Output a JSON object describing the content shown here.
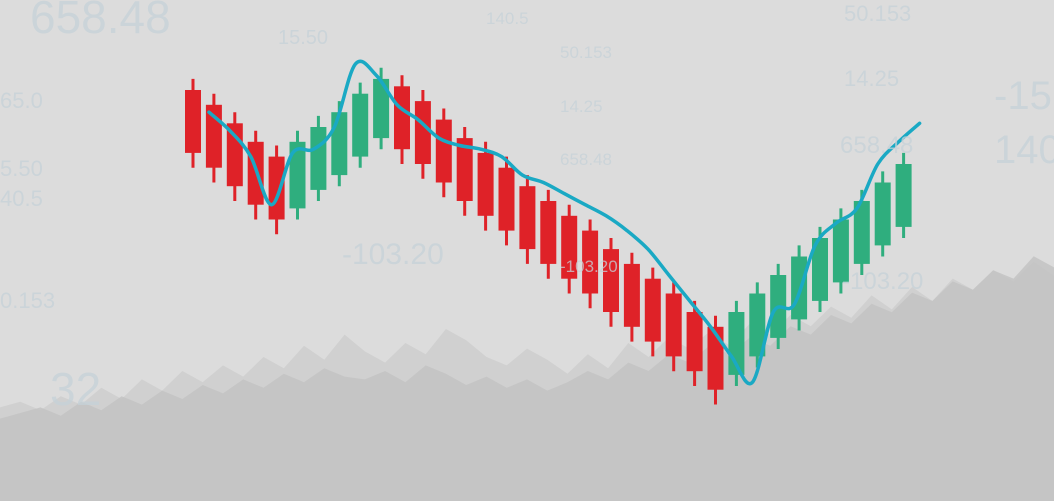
{
  "background_numbers": [
    "658.48",
    "15.50",
    "140.5",
    "50.153",
    "14.25",
    "658.48",
    "-103.20",
    "-103.20",
    "50.153",
    "14.25",
    "658.48",
    "-103.20",
    "-15",
    "140",
    "65.0",
    "5.50",
    "40.5",
    "0.153",
    "32"
  ],
  "colors": {
    "background": "#dcdcdc",
    "bearish_candle": "#df2228",
    "bullish_candle": "#2fae7e",
    "trend_line": "#1aa9c4",
    "area_fill": "#c9c9c9"
  },
  "chart_data": {
    "type": "candlestick",
    "title": "",
    "xlabel": "",
    "ylabel": "",
    "candles": [
      {
        "dir": "down",
        "open": 100,
        "close": 83,
        "high": 103,
        "low": 79
      },
      {
        "dir": "down",
        "open": 96,
        "close": 79,
        "high": 99,
        "low": 75
      },
      {
        "dir": "down",
        "open": 91,
        "close": 74,
        "high": 94,
        "low": 70
      },
      {
        "dir": "down",
        "open": 86,
        "close": 69,
        "high": 89,
        "low": 65
      },
      {
        "dir": "down",
        "open": 82,
        "close": 65,
        "high": 85,
        "low": 61
      },
      {
        "dir": "up",
        "open": 68,
        "close": 86,
        "high": 89,
        "low": 65
      },
      {
        "dir": "up",
        "open": 73,
        "close": 90,
        "high": 93,
        "low": 70
      },
      {
        "dir": "up",
        "open": 77,
        "close": 94,
        "high": 97,
        "low": 74
      },
      {
        "dir": "up",
        "open": 82,
        "close": 99,
        "high": 102,
        "low": 79
      },
      {
        "dir": "up",
        "open": 87,
        "close": 103,
        "high": 106,
        "low": 84
      },
      {
        "dir": "down",
        "open": 101,
        "close": 84,
        "high": 104,
        "low": 80
      },
      {
        "dir": "down",
        "open": 97,
        "close": 80,
        "high": 100,
        "low": 76
      },
      {
        "dir": "down",
        "open": 92,
        "close": 75,
        "high": 95,
        "low": 71
      },
      {
        "dir": "down",
        "open": 87,
        "close": 70,
        "high": 90,
        "low": 66
      },
      {
        "dir": "down",
        "open": 83,
        "close": 66,
        "high": 86,
        "low": 62
      },
      {
        "dir": "down",
        "open": 79,
        "close": 62,
        "high": 82,
        "low": 58
      },
      {
        "dir": "down",
        "open": 74,
        "close": 57,
        "high": 77,
        "low": 53
      },
      {
        "dir": "down",
        "open": 70,
        "close": 53,
        "high": 73,
        "low": 49
      },
      {
        "dir": "down",
        "open": 66,
        "close": 49,
        "high": 69,
        "low": 45
      },
      {
        "dir": "down",
        "open": 62,
        "close": 45,
        "high": 65,
        "low": 41
      },
      {
        "dir": "down",
        "open": 57,
        "close": 40,
        "high": 60,
        "low": 36
      },
      {
        "dir": "down",
        "open": 53,
        "close": 36,
        "high": 56,
        "low": 32
      },
      {
        "dir": "down",
        "open": 49,
        "close": 32,
        "high": 52,
        "low": 28
      },
      {
        "dir": "down",
        "open": 45,
        "close": 28,
        "high": 48,
        "low": 24
      },
      {
        "dir": "down",
        "open": 40,
        "close": 24,
        "high": 43,
        "low": 20
      },
      {
        "dir": "down",
        "open": 36,
        "close": 19,
        "high": 39,
        "low": 15
      },
      {
        "dir": "up",
        "open": 23,
        "close": 40,
        "high": 43,
        "low": 20
      },
      {
        "dir": "up",
        "open": 28,
        "close": 45,
        "high": 48,
        "low": 25
      },
      {
        "dir": "up",
        "open": 33,
        "close": 50,
        "high": 53,
        "low": 30
      },
      {
        "dir": "up",
        "open": 38,
        "close": 55,
        "high": 58,
        "low": 35
      },
      {
        "dir": "up",
        "open": 43,
        "close": 60,
        "high": 63,
        "low": 40
      },
      {
        "dir": "up",
        "open": 48,
        "close": 65,
        "high": 68,
        "low": 45
      },
      {
        "dir": "up",
        "open": 53,
        "close": 70,
        "high": 73,
        "low": 50
      },
      {
        "dir": "up",
        "open": 58,
        "close": 75,
        "high": 78,
        "low": 55
      },
      {
        "dir": "up",
        "open": 63,
        "close": 80,
        "high": 83,
        "low": 60
      }
    ],
    "trend_line": [
      94,
      89,
      82,
      69,
      83,
      84,
      90,
      107,
      104,
      96,
      92,
      87,
      85,
      84,
      82,
      77,
      75,
      72,
      69,
      66,
      62,
      57,
      50,
      43,
      36,
      28,
      21,
      40,
      42,
      58,
      64,
      68,
      80,
      86,
      91
    ],
    "area_series": [
      [
        12,
        14,
        11,
        16,
        13,
        19,
        15,
        22,
        18,
        25,
        21,
        27,
        23,
        30,
        26,
        34,
        29,
        38,
        32,
        28,
        35,
        31,
        40,
        36,
        30,
        27,
        33,
        29,
        24,
        31,
        26,
        35,
        30,
        37,
        33,
        39,
        34,
        42,
        38,
        45,
        41,
        48,
        44,
        52,
        47,
        55,
        50,
        58,
        54,
        61,
        57,
        64,
        59
      ],
      [
        8,
        10,
        12,
        9,
        14,
        11,
        16,
        13,
        18,
        15,
        20,
        17,
        22,
        19,
        24,
        21,
        26,
        23,
        22,
        25,
        21,
        27,
        24,
        20,
        23,
        19,
        22,
        18,
        21,
        25,
        22,
        28,
        25,
        31,
        28,
        34,
        31,
        37,
        34,
        41,
        38,
        45,
        42,
        49,
        46,
        53,
        50,
        57,
        54,
        61,
        58,
        66,
        62
      ]
    ]
  }
}
